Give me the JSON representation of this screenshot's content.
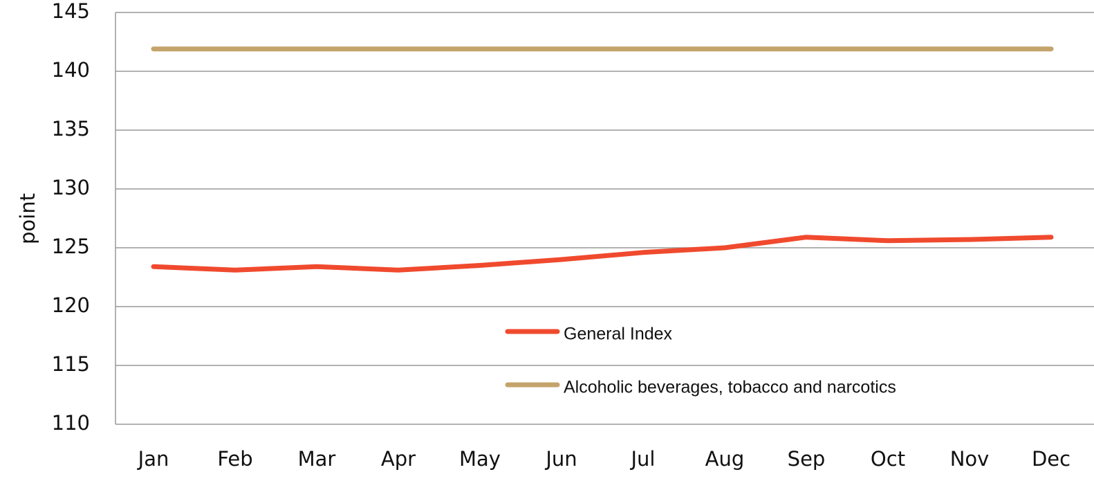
{
  "chart_data": {
    "type": "line",
    "y_label": "point",
    "categories": [
      "Jan",
      "Feb",
      "Mar",
      "Apr",
      "May",
      "Jun",
      "Jul",
      "Aug",
      "Sep",
      "Oct",
      "Nov",
      "Dec"
    ],
    "series": [
      {
        "name": "General Index",
        "color": "#f04a2e",
        "values": [
          123.4,
          123.1,
          123.4,
          123.1,
          123.5,
          124.0,
          124.6,
          125.0,
          125.9,
          125.6,
          125.7,
          125.9
        ]
      },
      {
        "name": "Alcoholic beverages, tobacco and narcotics",
        "color": "#c4a46a",
        "values": [
          141.9,
          141.9,
          141.9,
          141.9,
          141.9,
          141.9,
          141.9,
          141.9,
          141.9,
          141.9,
          141.9,
          141.9
        ]
      }
    ],
    "ylim": [
      110,
      145
    ],
    "yticks": [
      110,
      115,
      120,
      125,
      130,
      135,
      140,
      145
    ],
    "grid": true
  }
}
